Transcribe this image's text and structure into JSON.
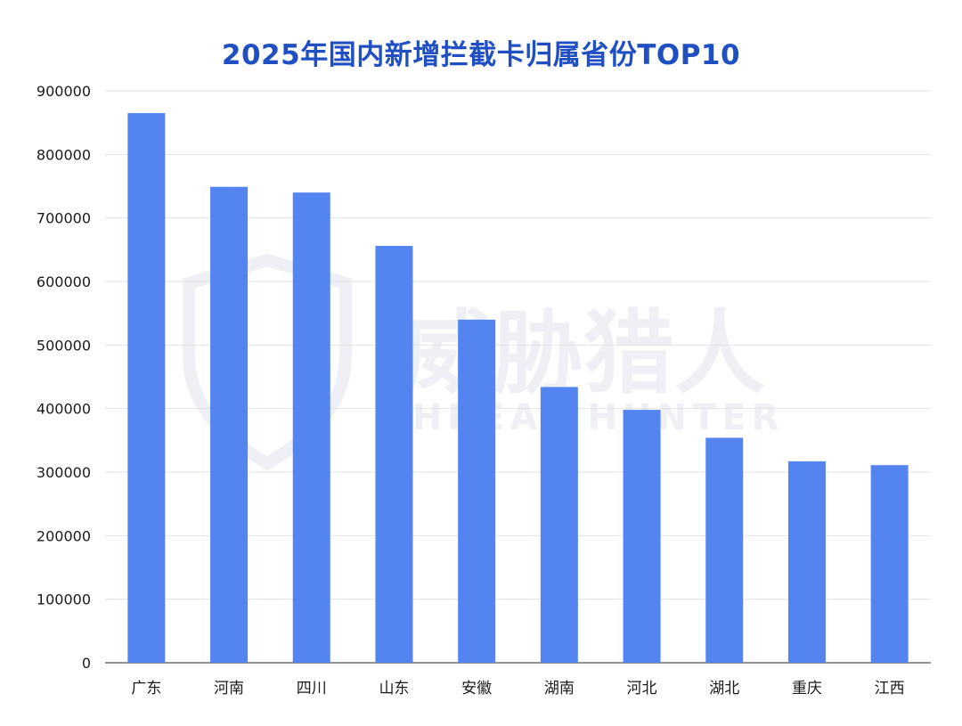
{
  "chart_data": {
    "type": "bar",
    "title": "2025年国内新增拦截卡归属省份TOP10",
    "categories": [
      "广东",
      "河南",
      "四川",
      "山东",
      "安徽",
      "湖南",
      "河北",
      "湖北",
      "重庆",
      "江西"
    ],
    "values": [
      865000,
      749000,
      740000,
      656000,
      540000,
      434000,
      398000,
      354000,
      317000,
      311000
    ],
    "ylim": [
      0,
      900000
    ],
    "yticks": [
      0,
      100000,
      200000,
      300000,
      400000,
      500000,
      600000,
      700000,
      800000,
      900000
    ],
    "grid": true,
    "legend": "none",
    "bar_color": "#5484f0"
  },
  "watermark": {
    "text_cn": "威胁猎人",
    "text_en": "THREAT HUNTER",
    "color": "#eef0f5",
    "icon": "shield-icon"
  },
  "colors": {
    "title": "#1f4fc2",
    "bar": "#5484f0",
    "grid": "#e3e3e3"
  }
}
